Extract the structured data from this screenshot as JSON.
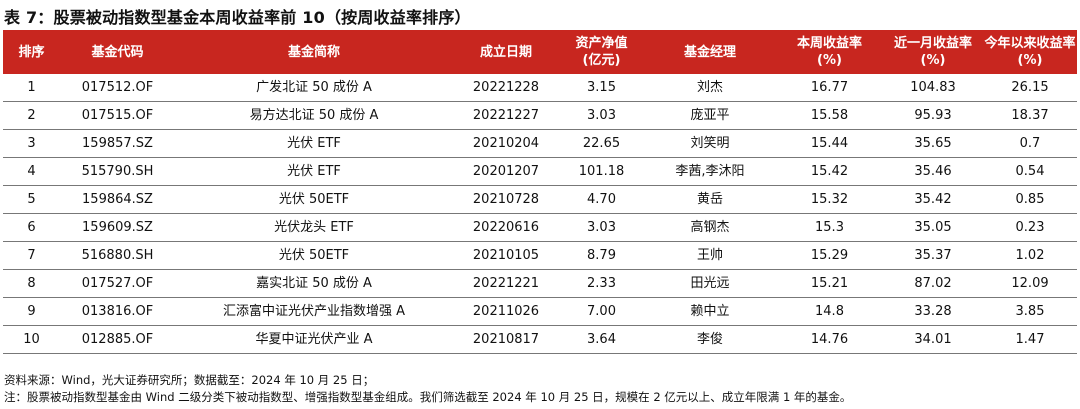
{
  "title": "表 7：股票被动指数型基金本周收益率前 10（按周收益率排序）",
  "table": {
    "headers": [
      {
        "l1": "排序",
        "l2": ""
      },
      {
        "l1": "基金代码",
        "l2": ""
      },
      {
        "l1": "基金简称",
        "l2": ""
      },
      {
        "l1": "成立日期",
        "l2": ""
      },
      {
        "l1": "资产净值",
        "l2": "(亿元)"
      },
      {
        "l1": "基金经理",
        "l2": ""
      },
      {
        "l1": "本周收益率",
        "l2": "(%)"
      },
      {
        "l1": "近一月收益率",
        "l2": "(%)"
      },
      {
        "l1": "今年以来收益率",
        "l2": "(%)"
      }
    ],
    "rows": [
      [
        "1",
        "017512.OF",
        "广发北证 50 成份 A",
        "20221228",
        "3.15",
        "刘杰",
        "16.77",
        "104.83",
        "26.15"
      ],
      [
        "2",
        "017515.OF",
        "易方达北证 50 成份 A",
        "20221227",
        "3.03",
        "庞亚平",
        "15.58",
        "95.93",
        "18.37"
      ],
      [
        "3",
        "159857.SZ",
        "光伏 ETF",
        "20210204",
        "22.65",
        "刘笑明",
        "15.44",
        "35.65",
        "0.7"
      ],
      [
        "4",
        "515790.SH",
        "光伏 ETF",
        "20201207",
        "101.18",
        "李茜,李沐阳",
        "15.42",
        "35.46",
        "0.54"
      ],
      [
        "5",
        "159864.SZ",
        "光伏 50ETF",
        "20210728",
        "4.70",
        "黄岳",
        "15.32",
        "35.42",
        "0.85"
      ],
      [
        "6",
        "159609.SZ",
        "光伏龙头 ETF",
        "20220616",
        "3.03",
        "高钢杰",
        "15.3",
        "35.05",
        "0.23"
      ],
      [
        "7",
        "516880.SH",
        "光伏 50ETF",
        "20210105",
        "8.79",
        "王帅",
        "15.29",
        "35.37",
        "1.02"
      ],
      [
        "8",
        "017527.OF",
        "嘉实北证 50 成份 A",
        "20221221",
        "2.33",
        "田光远",
        "15.21",
        "87.02",
        "12.09"
      ],
      [
        "9",
        "013816.OF",
        "汇添富中证光伏产业指数增强 A",
        "20211026",
        "7.00",
        "赖中立",
        "14.8",
        "33.28",
        "3.85"
      ],
      [
        "10",
        "012885.OF",
        "华夏中证光伏产业 A",
        "20210817",
        "3.64",
        "李俊",
        "14.76",
        "34.01",
        "1.47"
      ]
    ]
  },
  "notes": {
    "source": "资料来源：Wind，光大证券研究所；数据截至：2024 年 10 月 25 日；",
    "note": "注：股票被动指数型基金由 Wind 二级分类下被动指数型、增强指数型基金组成。我们筛选截至 2024 年 10 月 25 日，规模在 2 亿元以上、成立年限满 1 年的基金。"
  },
  "colors": {
    "header_bg": "#c8261f",
    "header_text": "#ffffff"
  }
}
